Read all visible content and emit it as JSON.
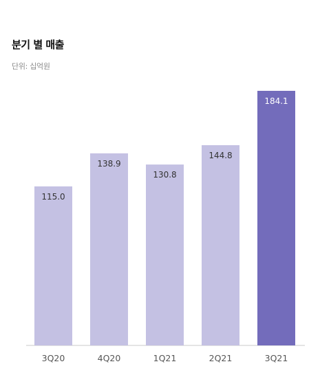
{
  "header": {
    "title": "분기 별 매출",
    "unit": "단위: 십억원"
  },
  "colors": {
    "bar": "#c4c1e3",
    "bar_highlight": "#736cbb",
    "axis": "#c8c8c8"
  },
  "chart_data": {
    "type": "bar",
    "title": "분기 별 매출",
    "subtitle": "단위: 십억원",
    "categories": [
      "3Q20",
      "4Q20",
      "1Q21",
      "2Q21",
      "3Q21"
    ],
    "values": [
      115.0,
      138.9,
      130.8,
      144.8,
      184.1
    ],
    "value_labels": [
      "115.0",
      "138.9",
      "130.8",
      "144.8",
      "184.1"
    ],
    "highlight_index": 4,
    "ylim": [
      0,
      184.1
    ],
    "grid": false,
    "legend": "none"
  }
}
